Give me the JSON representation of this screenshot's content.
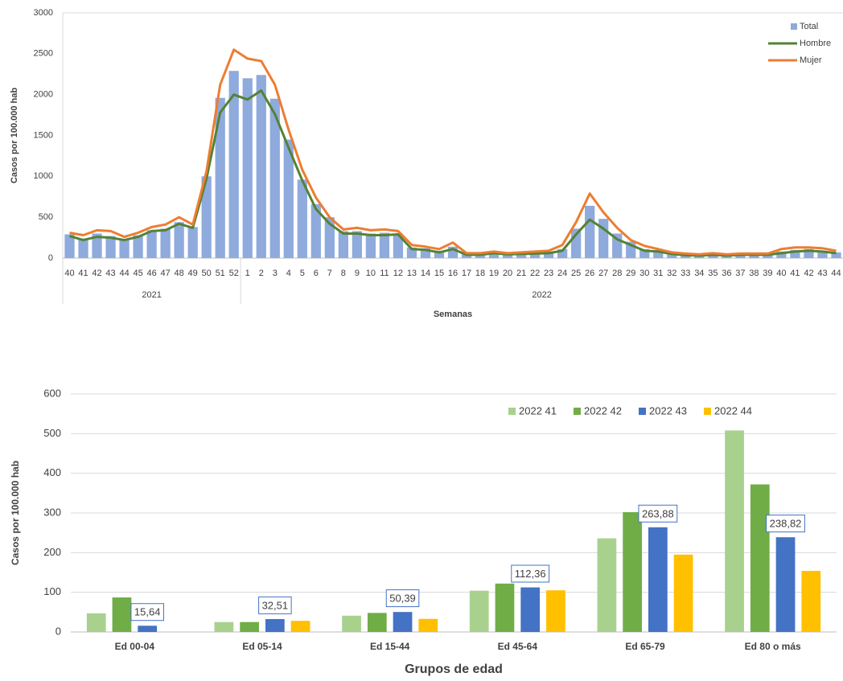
{
  "chart_data": [
    {
      "type": "bar",
      "ylabel": "Casos por 100.000 hab",
      "xlabel": "Semanas",
      "categories": [
        "40",
        "41",
        "42",
        "43",
        "44",
        "45",
        "46",
        "47",
        "48",
        "49",
        "50",
        "51",
        "52",
        "1",
        "2",
        "3",
        "4",
        "5",
        "6",
        "7",
        "8",
        "9",
        "10",
        "11",
        "12",
        "13",
        "14",
        "15",
        "16",
        "17",
        "18",
        "19",
        "20",
        "21",
        "22",
        "23",
        "24",
        "25",
        "26",
        "27",
        "28",
        "29",
        "30",
        "31",
        "32",
        "33",
        "34",
        "35",
        "36",
        "37",
        "38",
        "39",
        "40",
        "41",
        "42",
        "43",
        "44"
      ],
      "groups": [
        {
          "label": "2021",
          "size": 13
        },
        {
          "label": "2022",
          "size": 44
        }
      ],
      "series": [
        {
          "name": "Total",
          "type": "bar",
          "color": "#8faadc",
          "values": [
            290,
            240,
            300,
            270,
            230,
            280,
            340,
            360,
            440,
            380,
            1000,
            1960,
            2290,
            2200,
            2240,
            1950,
            1450,
            960,
            660,
            500,
            330,
            330,
            300,
            310,
            300,
            130,
            120,
            90,
            140,
            55,
            55,
            70,
            55,
            60,
            70,
            80,
            110,
            360,
            640,
            480,
            300,
            200,
            110,
            100,
            60,
            45,
            40,
            50,
            40,
            50,
            50,
            50,
            80,
            100,
            110,
            90,
            70
          ]
        },
        {
          "name": "Hombre",
          "type": "line",
          "color": "#548235",
          "values": [
            270,
            220,
            260,
            250,
            220,
            260,
            330,
            340,
            420,
            370,
            970,
            1780,
            2000,
            1940,
            2050,
            1760,
            1350,
            950,
            600,
            420,
            300,
            300,
            280,
            280,
            290,
            110,
            100,
            70,
            110,
            40,
            40,
            60,
            45,
            50,
            55,
            60,
            90,
            290,
            470,
            360,
            230,
            160,
            90,
            80,
            50,
            35,
            30,
            40,
            30,
            40,
            40,
            40,
            60,
            80,
            90,
            80,
            60
          ]
        },
        {
          "name": "Mujer",
          "type": "line",
          "color": "#ed7d31",
          "values": [
            310,
            280,
            340,
            330,
            260,
            310,
            380,
            410,
            500,
            410,
            1060,
            2120,
            2550,
            2440,
            2410,
            2120,
            1570,
            1080,
            740,
            500,
            350,
            370,
            340,
            350,
            330,
            160,
            140,
            110,
            190,
            60,
            60,
            80,
            60,
            70,
            80,
            90,
            160,
            440,
            790,
            560,
            370,
            220,
            150,
            110,
            70,
            55,
            45,
            60,
            45,
            55,
            55,
            55,
            110,
            130,
            130,
            120,
            90
          ]
        }
      ],
      "ylim": [
        0,
        3000
      ],
      "yticks": [
        0,
        500,
        1000,
        1500,
        2000,
        2500,
        3000
      ],
      "grid": false,
      "legend": "upper right"
    },
    {
      "type": "bar",
      "ylabel": "Casos por 100.000 hab",
      "xlabel": "Grupos de edad",
      "categories": [
        "Ed 00-04",
        "Ed 05-14",
        "Ed 15-44",
        "Ed 45-64",
        "Ed 65-79",
        "Ed 80 o más"
      ],
      "series": [
        {
          "name": "2022 41",
          "color": "#a9d18e",
          "values": [
            47,
            25,
            41,
            104,
            236,
            508
          ]
        },
        {
          "name": "2022 42",
          "color": "#70ad47",
          "values": [
            87,
            25,
            48,
            122,
            302,
            372
          ]
        },
        {
          "name": "2022 43",
          "color": "#4472c4",
          "values": [
            15.64,
            32.51,
            50.39,
            112.36,
            263.88,
            238.82
          ],
          "value_labels": [
            "15,64",
            "32,51",
            "50,39",
            "112,36",
            "263,88",
            "238,82"
          ]
        },
        {
          "name": "2022 44",
          "color": "#ffc000",
          "values": [
            null,
            28,
            33,
            105,
            195,
            154
          ]
        }
      ],
      "ylim": [
        0,
        600
      ],
      "yticks": [
        0,
        100,
        200,
        300,
        400,
        500,
        600
      ],
      "grid": true,
      "legend": "upper center"
    }
  ]
}
